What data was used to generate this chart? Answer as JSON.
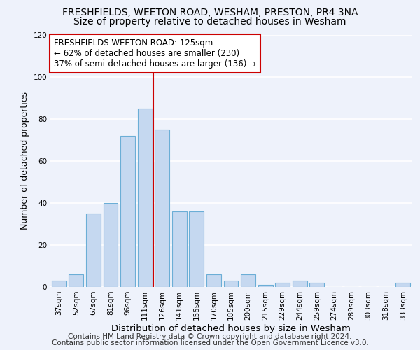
{
  "title1": "FRESHFIELDS, WEETON ROAD, WESHAM, PRESTON, PR4 3NA",
  "title2": "Size of property relative to detached houses in Wesham",
  "xlabel": "Distribution of detached houses by size in Wesham",
  "ylabel": "Number of detached properties",
  "footer1": "Contains HM Land Registry data © Crown copyright and database right 2024.",
  "footer2": "Contains public sector information licensed under the Open Government Licence v3.0.",
  "categories": [
    "37sqm",
    "52sqm",
    "67sqm",
    "81sqm",
    "96sqm",
    "111sqm",
    "126sqm",
    "141sqm",
    "155sqm",
    "170sqm",
    "185sqm",
    "200sqm",
    "215sqm",
    "229sqm",
    "244sqm",
    "259sqm",
    "274sqm",
    "289sqm",
    "303sqm",
    "318sqm",
    "333sqm"
  ],
  "values": [
    3,
    6,
    35,
    40,
    72,
    85,
    75,
    36,
    36,
    6,
    3,
    6,
    1,
    2,
    3,
    2,
    0,
    0,
    0,
    0,
    2
  ],
  "bar_color": "#c5d8f0",
  "bar_edge_color": "#6baed6",
  "vline_bin_index": 5,
  "vline_color": "#cc0000",
  "annotation_text": "FRESHFIELDS WEETON ROAD: 125sqm\n← 62% of detached houses are smaller (230)\n37% of semi-detached houses are larger (136) →",
  "annotation_box_color": "white",
  "annotation_box_edge_color": "#cc0000",
  "ylim": [
    0,
    120
  ],
  "yticks": [
    0,
    20,
    40,
    60,
    80,
    100,
    120
  ],
  "background_color": "#eef2fb",
  "grid_color": "white",
  "title1_fontsize": 10,
  "title2_fontsize": 10,
  "xlabel_fontsize": 9.5,
  "ylabel_fontsize": 9,
  "annotation_fontsize": 8.5,
  "footer_fontsize": 7.5,
  "tick_fontsize": 7.5
}
